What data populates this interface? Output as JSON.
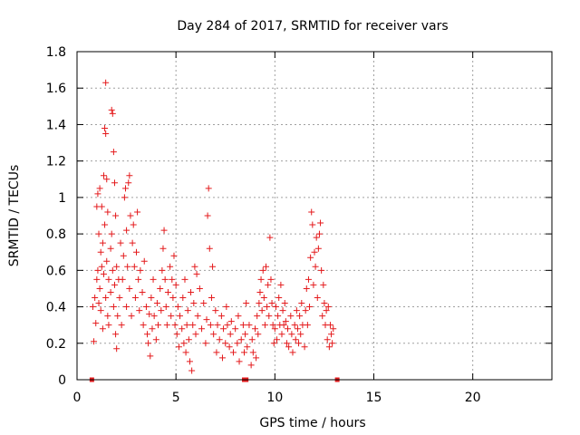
{
  "chart_data": {
    "type": "scatter",
    "title": "Day 284 of 2017, SRMTID for receiver vars",
    "xlabel": "GPS time / hours",
    "ylabel": "SRMTID / TECUs",
    "xlim": [
      0,
      24
    ],
    "ylim": [
      0,
      1.8
    ],
    "x_ticks": [
      0,
      5,
      10,
      15,
      20
    ],
    "x_tick_labels": [
      "0",
      "5",
      "10",
      "15",
      "20"
    ],
    "y_ticks": [
      0,
      0.2,
      0.4,
      0.6,
      0.8,
      1.0,
      1.2,
      1.4,
      1.6,
      1.8
    ],
    "y_tick_labels": [
      "0",
      "0.2",
      "0.4",
      "0.6",
      "0.8",
      "1",
      "1.2",
      "1.4",
      "1.6",
      "1.8"
    ],
    "grid": true,
    "marker": "+",
    "color": "#e41a1c",
    "zero_markers_x": [
      0.75,
      8.45,
      8.55,
      13.15
    ],
    "series": [
      {
        "name": "SRMTID",
        "points": [
          [
            0.8,
            0.4
          ],
          [
            0.85,
            0.21
          ],
          [
            0.9,
            0.45
          ],
          [
            0.95,
            0.31
          ],
          [
            1.0,
            0.55
          ],
          [
            1.0,
            0.95
          ],
          [
            1.05,
            1.02
          ],
          [
            1.05,
            0.6
          ],
          [
            1.1,
            0.42
          ],
          [
            1.1,
            0.8
          ],
          [
            1.15,
            0.5
          ],
          [
            1.15,
            1.05
          ],
          [
            1.2,
            0.7
          ],
          [
            1.2,
            0.38
          ],
          [
            1.25,
            0.62
          ],
          [
            1.25,
            0.95
          ],
          [
            1.3,
            0.75
          ],
          [
            1.3,
            0.28
          ],
          [
            1.35,
            1.12
          ],
          [
            1.35,
            0.58
          ],
          [
            1.4,
            1.38
          ],
          [
            1.4,
            0.85
          ],
          [
            1.45,
            1.63
          ],
          [
            1.45,
            1.35
          ],
          [
            1.45,
            0.45
          ],
          [
            1.5,
            1.1
          ],
          [
            1.5,
            0.65
          ],
          [
            1.55,
            0.92
          ],
          [
            1.55,
            0.35
          ],
          [
            1.6,
            0.55
          ],
          [
            1.6,
            0.3
          ],
          [
            1.7,
            0.48
          ],
          [
            1.7,
            0.72
          ],
          [
            1.75,
            1.48
          ],
          [
            1.75,
            0.8
          ],
          [
            1.8,
            1.46
          ],
          [
            1.8,
            0.6
          ],
          [
            1.85,
            1.25
          ],
          [
            1.85,
            0.4
          ],
          [
            1.9,
            1.08
          ],
          [
            1.9,
            0.52
          ],
          [
            1.95,
            0.9
          ],
          [
            1.95,
            0.25
          ],
          [
            2.0,
            0.17
          ],
          [
            2.0,
            0.62
          ],
          [
            2.05,
            0.35
          ],
          [
            2.1,
            0.55
          ],
          [
            2.15,
            0.45
          ],
          [
            2.2,
            0.75
          ],
          [
            2.25,
            0.3
          ],
          [
            2.3,
            0.55
          ],
          [
            2.35,
            0.68
          ],
          [
            2.4,
            1.0
          ],
          [
            2.45,
            1.05
          ],
          [
            2.5,
            0.82
          ],
          [
            2.5,
            0.4
          ],
          [
            2.55,
            0.62
          ],
          [
            2.6,
            1.08
          ],
          [
            2.65,
            1.12
          ],
          [
            2.65,
            0.5
          ],
          [
            2.7,
            0.9
          ],
          [
            2.75,
            0.35
          ],
          [
            2.8,
            0.75
          ],
          [
            2.85,
            0.85
          ],
          [
            2.9,
            0.62
          ],
          [
            2.95,
            0.45
          ],
          [
            3.0,
            0.7
          ],
          [
            3.05,
            0.92
          ],
          [
            3.1,
            0.55
          ],
          [
            3.15,
            0.38
          ],
          [
            3.2,
            0.6
          ],
          [
            3.3,
            0.48
          ],
          [
            3.35,
            0.3
          ],
          [
            3.4,
            0.65
          ],
          [
            3.5,
            0.4
          ],
          [
            3.55,
            0.25
          ],
          [
            3.6,
            0.2
          ],
          [
            3.65,
            0.36
          ],
          [
            3.7,
            0.13
          ],
          [
            3.75,
            0.45
          ],
          [
            3.8,
            0.28
          ],
          [
            3.85,
            0.55
          ],
          [
            3.9,
            0.35
          ],
          [
            4.0,
            0.22
          ],
          [
            4.05,
            0.42
          ],
          [
            4.1,
            0.3
          ],
          [
            4.2,
            0.5
          ],
          [
            4.25,
            0.38
          ],
          [
            4.3,
            0.6
          ],
          [
            4.35,
            0.72
          ],
          [
            4.4,
            0.82
          ],
          [
            4.45,
            0.55
          ],
          [
            4.5,
            0.4
          ],
          [
            4.55,
            0.3
          ],
          [
            4.6,
            0.48
          ],
          [
            4.7,
            0.62
          ],
          [
            4.75,
            0.35
          ],
          [
            4.8,
            0.55
          ],
          [
            4.85,
            0.45
          ],
          [
            4.9,
            0.68
          ],
          [
            4.95,
            0.3
          ],
          [
            5.0,
            0.52
          ],
          [
            5.05,
            0.25
          ],
          [
            5.1,
            0.4
          ],
          [
            5.15,
            0.18
          ],
          [
            5.2,
            0.35
          ],
          [
            5.3,
            0.28
          ],
          [
            5.35,
            0.45
          ],
          [
            5.4,
            0.2
          ],
          [
            5.45,
            0.55
          ],
          [
            5.5,
            0.15
          ],
          [
            5.55,
            0.3
          ],
          [
            5.6,
            0.38
          ],
          [
            5.65,
            0.22
          ],
          [
            5.7,
            0.1
          ],
          [
            5.75,
            0.48
          ],
          [
            5.8,
            0.05
          ],
          [
            5.85,
            0.3
          ],
          [
            5.9,
            0.42
          ],
          [
            5.95,
            0.62
          ],
          [
            6.0,
            0.25
          ],
          [
            6.05,
            0.58
          ],
          [
            6.1,
            0.35
          ],
          [
            6.2,
            0.5
          ],
          [
            6.3,
            0.28
          ],
          [
            6.4,
            0.42
          ],
          [
            6.5,
            0.2
          ],
          [
            6.55,
            0.33
          ],
          [
            6.6,
            0.9
          ],
          [
            6.65,
            1.05
          ],
          [
            6.7,
            0.72
          ],
          [
            6.75,
            0.3
          ],
          [
            6.8,
            0.45
          ],
          [
            6.85,
            0.62
          ],
          [
            6.9,
            0.25
          ],
          [
            7.0,
            0.38
          ],
          [
            7.05,
            0.15
          ],
          [
            7.1,
            0.3
          ],
          [
            7.2,
            0.22
          ],
          [
            7.3,
            0.35
          ],
          [
            7.35,
            0.12
          ],
          [
            7.4,
            0.28
          ],
          [
            7.5,
            0.2
          ],
          [
            7.55,
            0.4
          ],
          [
            7.6,
            0.3
          ],
          [
            7.7,
            0.18
          ],
          [
            7.75,
            0.25
          ],
          [
            7.8,
            0.32
          ],
          [
            7.9,
            0.15
          ],
          [
            8.0,
            0.28
          ],
          [
            8.1,
            0.2
          ],
          [
            8.15,
            0.35
          ],
          [
            8.2,
            0.1
          ],
          [
            8.3,
            0.22
          ],
          [
            8.4,
            0.3
          ],
          [
            8.45,
            0.15
          ],
          [
            8.5,
            0.25
          ],
          [
            8.55,
            0.42
          ],
          [
            8.6,
            0.18
          ],
          [
            8.7,
            0.3
          ],
          [
            8.8,
            0.08
          ],
          [
            8.85,
            0.22
          ],
          [
            8.9,
            0.15
          ],
          [
            9.0,
            0.28
          ],
          [
            9.05,
            0.12
          ],
          [
            9.1,
            0.35
          ],
          [
            9.15,
            0.25
          ],
          [
            9.2,
            0.42
          ],
          [
            9.25,
            0.48
          ],
          [
            9.3,
            0.55
          ],
          [
            9.35,
            0.38
          ],
          [
            9.4,
            0.6
          ],
          [
            9.45,
            0.45
          ],
          [
            9.5,
            0.3
          ],
          [
            9.55,
            0.62
          ],
          [
            9.6,
            0.4
          ],
          [
            9.65,
            0.52
          ],
          [
            9.7,
            0.35
          ],
          [
            9.75,
            0.78
          ],
          [
            9.8,
            0.55
          ],
          [
            9.85,
            0.42
          ],
          [
            9.9,
            0.3
          ],
          [
            9.95,
            0.2
          ],
          [
            10.0,
            0.28
          ],
          [
            10.05,
            0.4
          ],
          [
            10.1,
            0.22
          ],
          [
            10.15,
            0.35
          ],
          [
            10.2,
            0.45
          ],
          [
            10.25,
            0.3
          ],
          [
            10.3,
            0.52
          ],
          [
            10.35,
            0.25
          ],
          [
            10.4,
            0.38
          ],
          [
            10.45,
            0.3
          ],
          [
            10.5,
            0.42
          ],
          [
            10.55,
            0.32
          ],
          [
            10.6,
            0.2
          ],
          [
            10.65,
            0.28
          ],
          [
            10.7,
            0.18
          ],
          [
            10.8,
            0.35
          ],
          [
            10.85,
            0.25
          ],
          [
            10.9,
            0.15
          ],
          [
            11.0,
            0.3
          ],
          [
            11.05,
            0.22
          ],
          [
            11.1,
            0.38
          ],
          [
            11.15,
            0.28
          ],
          [
            11.2,
            0.2
          ],
          [
            11.25,
            0.35
          ],
          [
            11.3,
            0.25
          ],
          [
            11.35,
            0.42
          ],
          [
            11.4,
            0.3
          ],
          [
            11.5,
            0.18
          ],
          [
            11.55,
            0.38
          ],
          [
            11.6,
            0.5
          ],
          [
            11.65,
            0.3
          ],
          [
            11.7,
            0.55
          ],
          [
            11.75,
            0.4
          ],
          [
            11.8,
            0.67
          ],
          [
            11.85,
            0.92
          ],
          [
            11.9,
            0.85
          ],
          [
            11.95,
            0.52
          ],
          [
            12.0,
            0.7
          ],
          [
            12.05,
            0.62
          ],
          [
            12.1,
            0.78
          ],
          [
            12.15,
            0.45
          ],
          [
            12.2,
            0.72
          ],
          [
            12.25,
            0.8
          ],
          [
            12.3,
            0.86
          ],
          [
            12.35,
            0.6
          ],
          [
            12.4,
            0.35
          ],
          [
            12.45,
            0.52
          ],
          [
            12.5,
            0.42
          ],
          [
            12.55,
            0.3
          ],
          [
            12.6,
            0.38
          ],
          [
            12.65,
            0.22
          ],
          [
            12.7,
            0.4
          ],
          [
            12.75,
            0.18
          ],
          [
            12.8,
            0.3
          ],
          [
            12.85,
            0.25
          ],
          [
            12.9,
            0.2
          ],
          [
            12.95,
            0.28
          ]
        ]
      }
    ]
  }
}
